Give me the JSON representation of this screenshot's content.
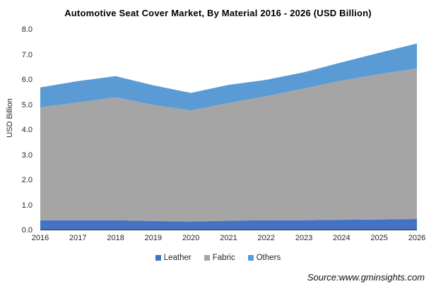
{
  "title": "Automotive Seat Cover Market, By Material 2016 - 2026 (USD Billion)",
  "source_note": "Source:www.gminsights.com",
  "y_axis": {
    "label": "USD Billion",
    "ticks": [
      "8.0",
      "7.0",
      "6.0",
      "5.0",
      "4.0",
      "3.0",
      "2.0",
      "1.0",
      "0.0"
    ]
  },
  "chart_data": {
    "type": "area",
    "stacked": true,
    "title": "Automotive Seat Cover Market, By Material 2016 - 2026 (USD Billion)",
    "xlabel": "",
    "ylabel": "USD Billion",
    "ylim": [
      0,
      8
    ],
    "grid": false,
    "legend_position": "bottom",
    "categories": [
      "2016",
      "2017",
      "2018",
      "2019",
      "2020",
      "2021",
      "2022",
      "2023",
      "2024",
      "2025",
      "2026"
    ],
    "series": [
      {
        "name": "Leather",
        "color": "#4472C4",
        "values": [
          0.4,
          0.4,
          0.4,
          0.37,
          0.35,
          0.38,
          0.4,
          0.4,
          0.42,
          0.43,
          0.45
        ]
      },
      {
        "name": "Fabric",
        "color": "#A5A5A5",
        "values": [
          4.5,
          4.7,
          4.9,
          4.63,
          4.43,
          4.7,
          4.95,
          5.25,
          5.55,
          5.8,
          6.0
        ]
      },
      {
        "name": "Others",
        "color": "#5B9BD5",
        "values": [
          0.8,
          0.85,
          0.85,
          0.78,
          0.7,
          0.72,
          0.65,
          0.65,
          0.73,
          0.85,
          1.0
        ]
      }
    ],
    "totals": [
      5.7,
      5.95,
      6.15,
      5.78,
      5.48,
      5.8,
      6.0,
      6.3,
      6.7,
      7.08,
      7.45
    ]
  }
}
